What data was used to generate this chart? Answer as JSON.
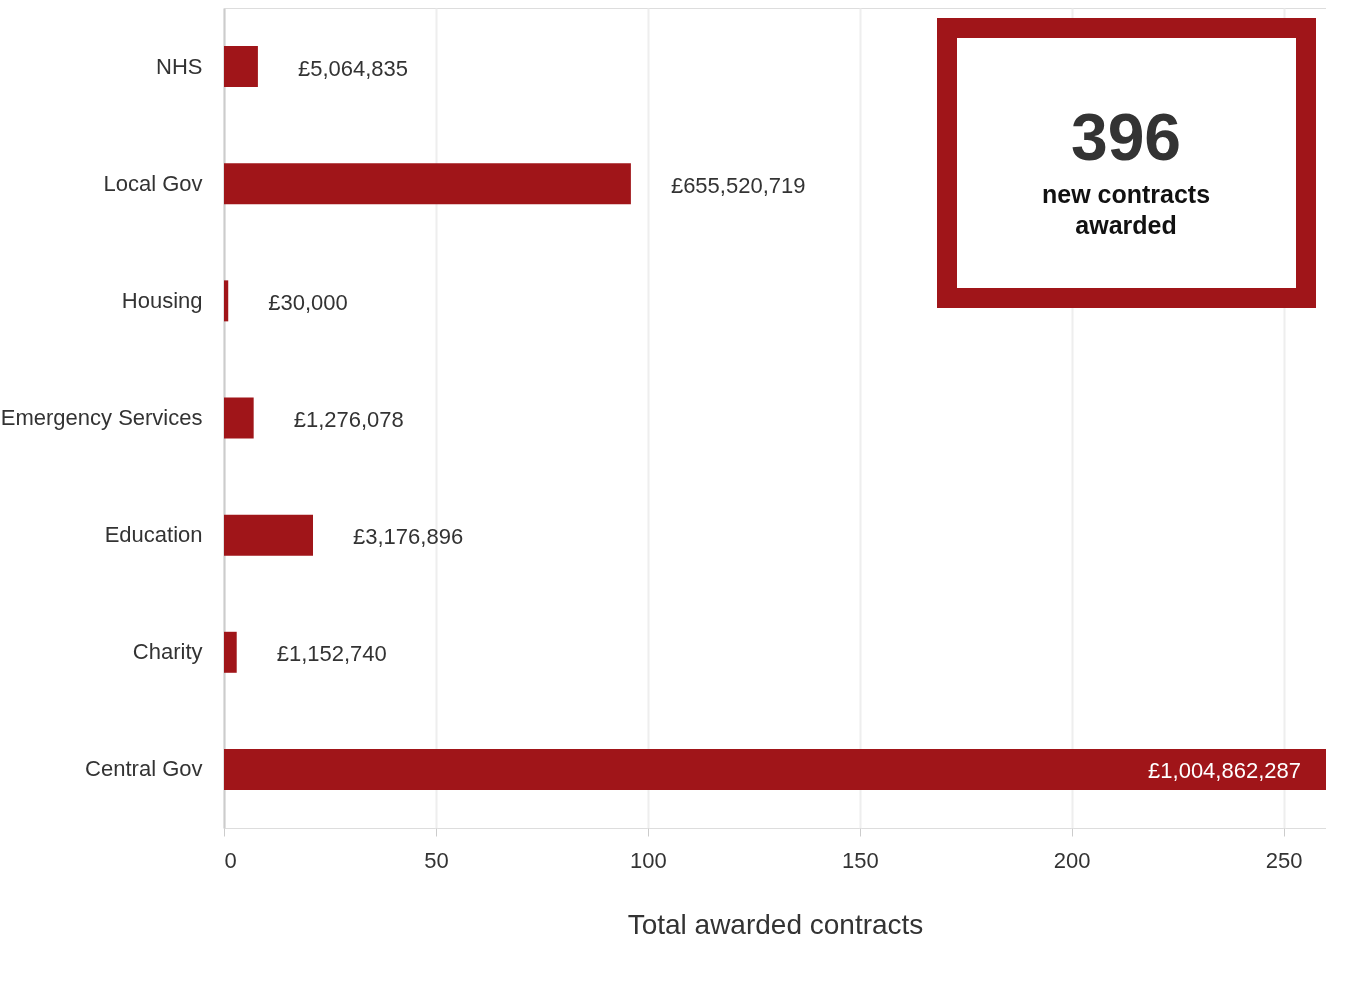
{
  "chart_data": {
    "type": "bar",
    "orientation": "horizontal",
    "xlabel": "Total awarded contracts",
    "categories": [
      "NHS",
      "Local Gov",
      "Housing",
      "Emergency Services",
      "Education",
      "Charity",
      "Central Gov"
    ],
    "values": [
      8,
      96,
      1,
      7,
      21,
      3,
      260
    ],
    "color": "#a01519",
    "xlim": [
      0,
      260
    ],
    "xticks": [
      0,
      50,
      100,
      150,
      200,
      250
    ],
    "grid": "x",
    "annotations": [
      "£5,064,835",
      "£655,520,719",
      "£30,000",
      "£1,276,078",
      "£3,176,896",
      "£1,152,740",
      "£1,004,862,287",
      "396",
      "new contracts awarded"
    ]
  }
}
